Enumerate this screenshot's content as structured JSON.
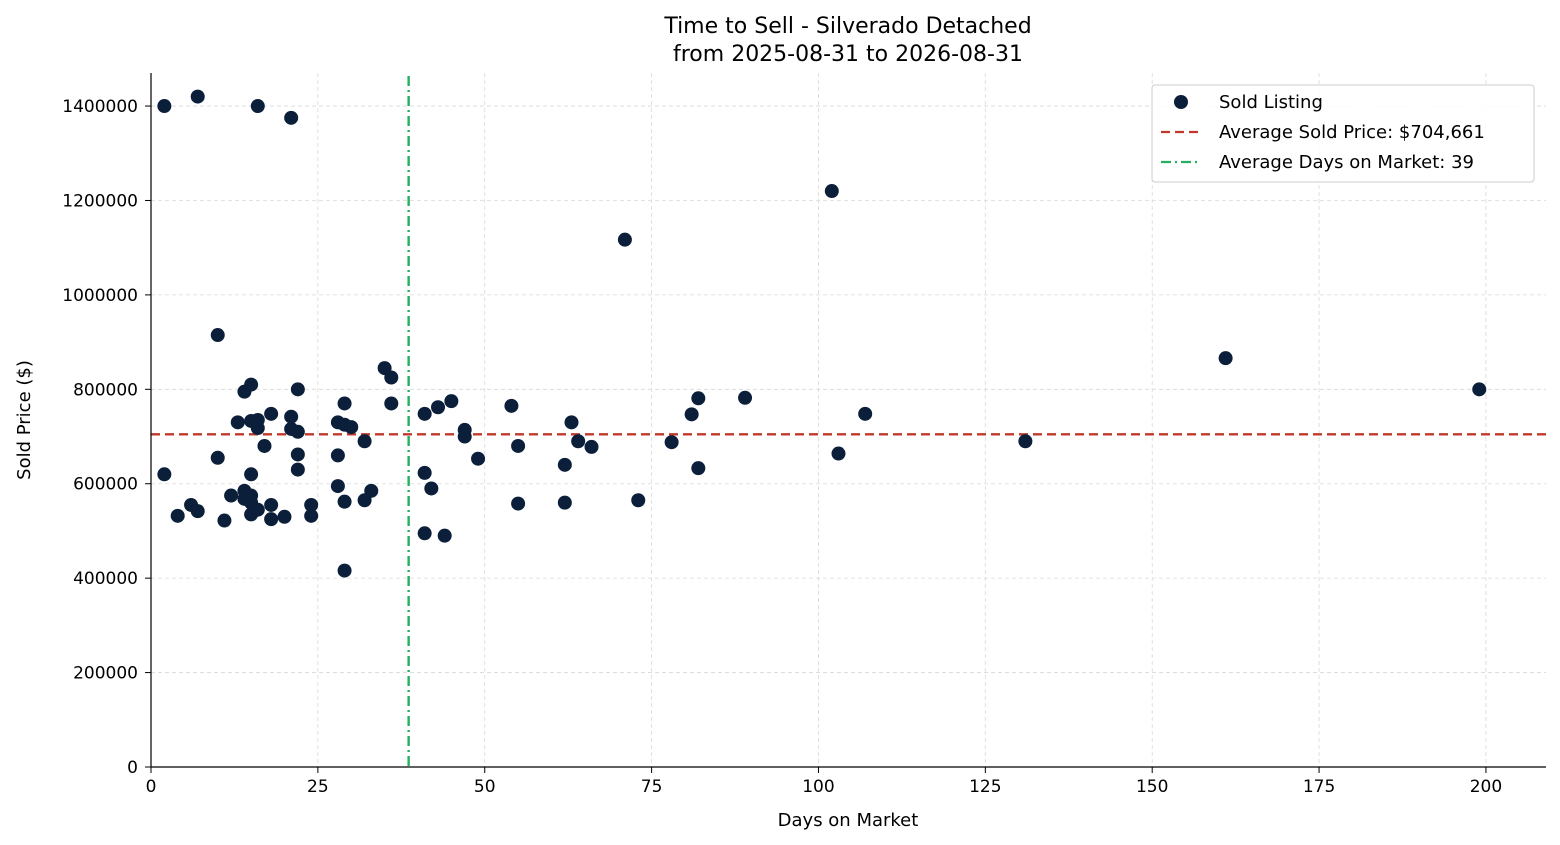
{
  "chart_data": {
    "type": "scatter",
    "title": "Time to Sell - Silverado Detached",
    "subtitle": "from 2025-08-31 to 2026-08-31",
    "xlabel": "Days on Market",
    "ylabel": "Sold Price ($)",
    "xlim": [
      0,
      209
    ],
    "ylim": [
      0,
      1470000
    ],
    "xticks": [
      0,
      25,
      50,
      75,
      100,
      125,
      150,
      175,
      200
    ],
    "yticks": [
      0,
      200000,
      400000,
      600000,
      800000,
      1000000,
      1200000,
      1400000
    ],
    "xtick_labels": [
      "0",
      "25",
      "50",
      "75",
      "100",
      "125",
      "150",
      "175",
      "200"
    ],
    "ytick_labels": [
      "0",
      "200000",
      "400000",
      "600000",
      "800000",
      "1000000",
      "1200000",
      "1400000"
    ],
    "grid": true,
    "legend_position": "top-right",
    "series": [
      {
        "name": "Sold Listing",
        "color": "#0b1f3a",
        "points": [
          [
            2,
            1400000
          ],
          [
            7,
            1420000
          ],
          [
            16,
            1400000
          ],
          [
            21,
            1375000
          ],
          [
            2,
            620000
          ],
          [
            4,
            532000
          ],
          [
            6,
            555000
          ],
          [
            7,
            542000
          ],
          [
            10,
            915000
          ],
          [
            10,
            655000
          ],
          [
            11,
            522000
          ],
          [
            12,
            575000
          ],
          [
            13,
            730000
          ],
          [
            14,
            795000
          ],
          [
            14,
            585000
          ],
          [
            14,
            568000
          ],
          [
            15,
            810000
          ],
          [
            15,
            733000
          ],
          [
            15,
            620000
          ],
          [
            15,
            575000
          ],
          [
            15,
            560000
          ],
          [
            15,
            535000
          ],
          [
            16,
            735000
          ],
          [
            16,
            718000
          ],
          [
            16,
            545000
          ],
          [
            17,
            680000
          ],
          [
            18,
            748000
          ],
          [
            18,
            555000
          ],
          [
            18,
            525000
          ],
          [
            20,
            530000
          ],
          [
            21,
            742000
          ],
          [
            21,
            716000
          ],
          [
            22,
            800000
          ],
          [
            22,
            710000
          ],
          [
            22,
            662000
          ],
          [
            22,
            630000
          ],
          [
            24,
            555000
          ],
          [
            24,
            532000
          ],
          [
            28,
            730000
          ],
          [
            28,
            660000
          ],
          [
            28,
            595000
          ],
          [
            29,
            770000
          ],
          [
            29,
            725000
          ],
          [
            29,
            562000
          ],
          [
            29,
            416000
          ],
          [
            30,
            720000
          ],
          [
            32,
            690000
          ],
          [
            32,
            565000
          ],
          [
            33,
            585000
          ],
          [
            35,
            845000
          ],
          [
            36,
            825000
          ],
          [
            36,
            770000
          ],
          [
            41,
            748000
          ],
          [
            41,
            623000
          ],
          [
            41,
            495000
          ],
          [
            42,
            590000
          ],
          [
            43,
            762000
          ],
          [
            44,
            490000
          ],
          [
            45,
            775000
          ],
          [
            47,
            714000
          ],
          [
            47,
            700000
          ],
          [
            49,
            653000
          ],
          [
            54,
            765000
          ],
          [
            55,
            680000
          ],
          [
            55,
            558000
          ],
          [
            62,
            640000
          ],
          [
            62,
            560000
          ],
          [
            63,
            730000
          ],
          [
            64,
            690000
          ],
          [
            66,
            678000
          ],
          [
            71,
            1117000
          ],
          [
            73,
            565000
          ],
          [
            78,
            688000
          ],
          [
            81,
            747000
          ],
          [
            82,
            781000
          ],
          [
            82,
            633000
          ],
          [
            89,
            782000
          ],
          [
            102,
            1220000
          ],
          [
            103,
            664000
          ],
          [
            107,
            748000
          ],
          [
            131,
            690000
          ],
          [
            161,
            866000
          ],
          [
            199,
            800000
          ]
        ]
      }
    ],
    "reference_lines": [
      {
        "name": "Average Sold Price: $704,661",
        "orientation": "horizontal",
        "value": 704661,
        "color": "#c0392b",
        "style": "dashed"
      },
      {
        "name": "Average Days on Market: 39",
        "orientation": "vertical",
        "value": 38.6,
        "color": "#27ae60",
        "style": "dashdot"
      }
    ]
  }
}
